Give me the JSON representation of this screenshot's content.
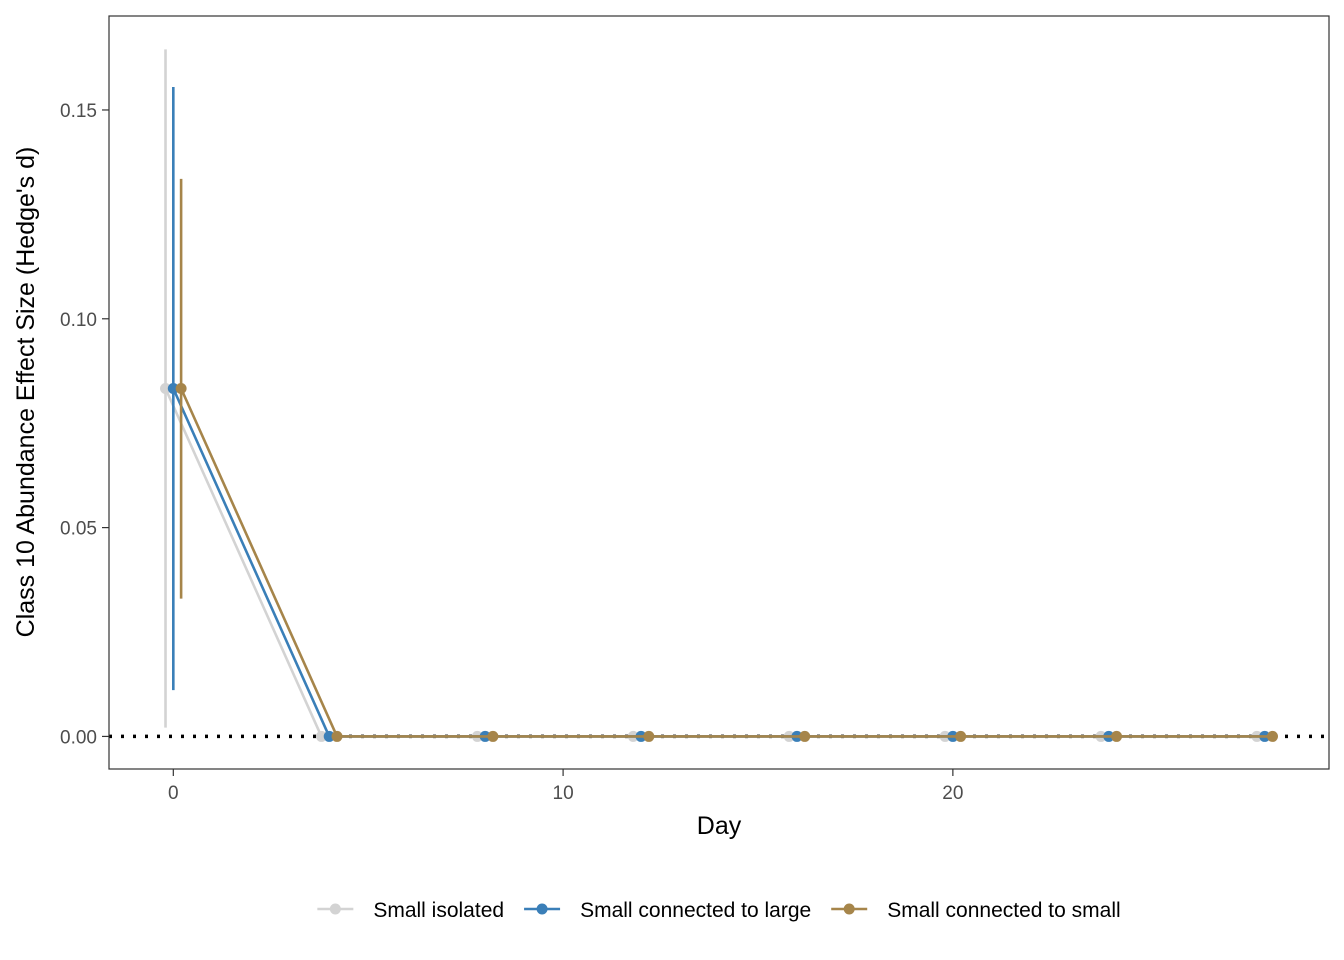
{
  "chart_data": {
    "type": "line",
    "xlabel": "Day",
    "ylabel": "Class 10 Abundance Effect Size (Hedge's d)",
    "xlim": [
      -1.65,
      29.65
    ],
    "ylim": [
      -0.0078,
      0.1725
    ],
    "x_ticks": [
      0,
      10,
      20
    ],
    "x_tick_labels": [
      "0",
      "10",
      "20"
    ],
    "y_ticks": [
      0,
      0.05,
      0.1,
      0.15
    ],
    "y_tick_labels": [
      "0.00",
      "0.05",
      "0.10",
      "0.15"
    ],
    "reference_line": {
      "y": 0,
      "style": "dotted",
      "color": "#000000"
    },
    "grid": false,
    "legend_position": "bottom",
    "series": [
      {
        "name": "Small isolated",
        "color": "#d3d3d3",
        "dodge": -0.2,
        "x": [
          0,
          4,
          8,
          12,
          16,
          20,
          24,
          28
        ],
        "y": [
          0.0833,
          0,
          0,
          0,
          0,
          0,
          0,
          0
        ],
        "error_bars": [
          {
            "x": 0,
            "low": 0.0021,
            "high": 0.1645
          }
        ]
      },
      {
        "name": "Small connected to large",
        "color": "#3a7fb8",
        "dodge": 0,
        "x": [
          0,
          4,
          8,
          12,
          16,
          20,
          24,
          28
        ],
        "y": [
          0.0833,
          0,
          0,
          0,
          0,
          0,
          0,
          0
        ],
        "error_bars": [
          {
            "x": 0,
            "low": 0.0111,
            "high": 0.1555
          }
        ]
      },
      {
        "name": "Small connected to small",
        "color": "#a6854a",
        "dodge": 0.2,
        "x": [
          0,
          4,
          8,
          12,
          16,
          20,
          24,
          28
        ],
        "y": [
          0.0833,
          0,
          0,
          0,
          0,
          0,
          0,
          0
        ],
        "error_bars": [
          {
            "x": 0,
            "low": 0.033,
            "high": 0.1335
          }
        ]
      }
    ]
  }
}
